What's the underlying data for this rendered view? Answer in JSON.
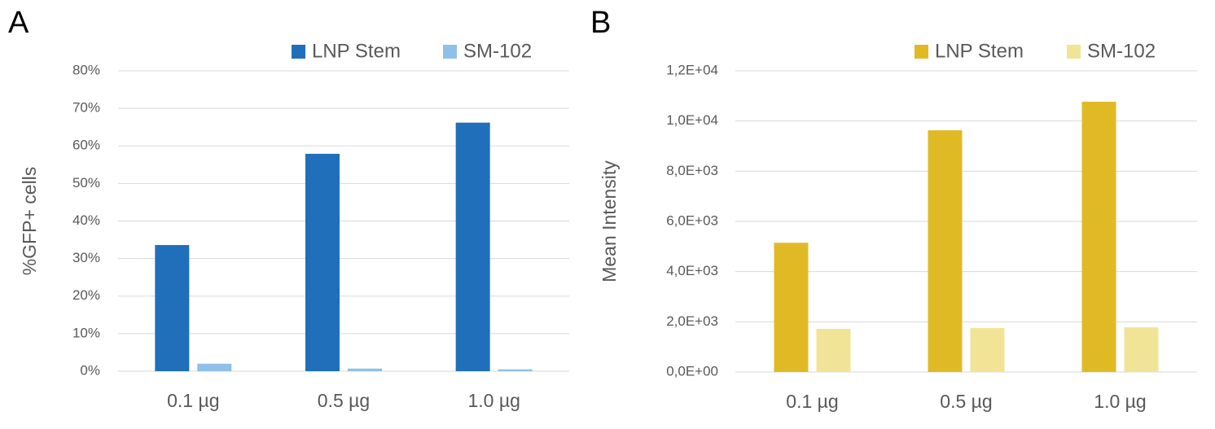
{
  "chart_data": [
    {
      "type": "bar",
      "label": "A",
      "y_label": "%GFP+ cells",
      "categories": [
        "0.1 µg",
        "0.5 µg",
        "1.0 µg"
      ],
      "series": [
        {
          "name": "LNP Stem",
          "color": "#1f6fba",
          "values": [
            33.6,
            57.9,
            66.2
          ]
        },
        {
          "name": "SM-102",
          "color": "#8fc0e8",
          "values": [
            2.0,
            0.7,
            0.5
          ]
        }
      ],
      "ylim": [
        0,
        80
      ],
      "yticks": [
        {
          "value": 0,
          "label": "0%"
        },
        {
          "value": 10,
          "label": "10%"
        },
        {
          "value": 20,
          "label": "20%"
        },
        {
          "value": 30,
          "label": "30%"
        },
        {
          "value": 40,
          "label": "40%"
        },
        {
          "value": 50,
          "label": "50%"
        },
        {
          "value": 60,
          "label": "60%"
        },
        {
          "value": 70,
          "label": "70%"
        },
        {
          "value": 80,
          "label": "80%"
        }
      ],
      "grid": true
    },
    {
      "type": "bar",
      "label": "B",
      "y_label": "Mean Intensity",
      "categories": [
        "0.1 µg",
        "0.5 µg",
        "1.0 µg"
      ],
      "series": [
        {
          "name": "LNP Stem",
          "color": "#e0ba25",
          "values": [
            5150,
            9630,
            10770
          ]
        },
        {
          "name": "SM-102",
          "color": "#f2e496",
          "values": [
            1720,
            1750,
            1780
          ]
        }
      ],
      "ylim": [
        0,
        12000
      ],
      "yticks": [
        {
          "value": 0,
          "label": "0,0E+00"
        },
        {
          "value": 2000,
          "label": "2,0E+03"
        },
        {
          "value": 4000,
          "label": "4,0E+03"
        },
        {
          "value": 6000,
          "label": "6,0E+03"
        },
        {
          "value": 8000,
          "label": "8,0E+03"
        },
        {
          "value": 10000,
          "label": "1,0E+04"
        },
        {
          "value": 12000,
          "label": "1,2E+04"
        }
      ],
      "grid": true
    }
  ]
}
